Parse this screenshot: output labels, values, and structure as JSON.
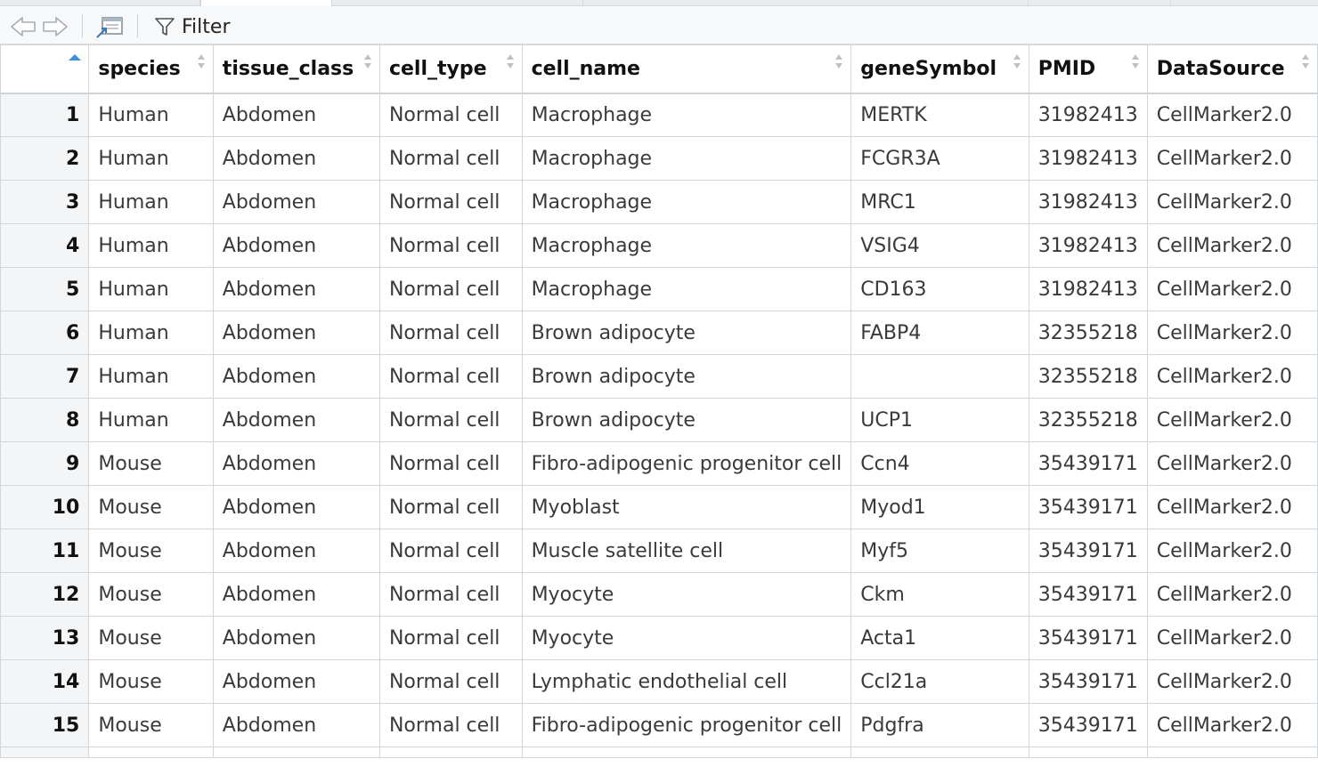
{
  "toolbar": {
    "filter_label": "Filter"
  },
  "table": {
    "columns": [
      "species",
      "tissue_class",
      "cell_type",
      "cell_name",
      "geneSymbol",
      "PMID",
      "DataSource"
    ],
    "rows": [
      {
        "n": "1",
        "species": "Human",
        "tissue_class": "Abdomen",
        "cell_type": "Normal cell",
        "cell_name": "Macrophage",
        "geneSymbol": "MERTK",
        "PMID": "31982413",
        "DataSource": "CellMarker2.0"
      },
      {
        "n": "2",
        "species": "Human",
        "tissue_class": "Abdomen",
        "cell_type": "Normal cell",
        "cell_name": "Macrophage",
        "geneSymbol": "FCGR3A",
        "PMID": "31982413",
        "DataSource": "CellMarker2.0"
      },
      {
        "n": "3",
        "species": "Human",
        "tissue_class": "Abdomen",
        "cell_type": "Normal cell",
        "cell_name": "Macrophage",
        "geneSymbol": "MRC1",
        "PMID": "31982413",
        "DataSource": "CellMarker2.0"
      },
      {
        "n": "4",
        "species": "Human",
        "tissue_class": "Abdomen",
        "cell_type": "Normal cell",
        "cell_name": "Macrophage",
        "geneSymbol": "VSIG4",
        "PMID": "31982413",
        "DataSource": "CellMarker2.0"
      },
      {
        "n": "5",
        "species": "Human",
        "tissue_class": "Abdomen",
        "cell_type": "Normal cell",
        "cell_name": "Macrophage",
        "geneSymbol": "CD163",
        "PMID": "31982413",
        "DataSource": "CellMarker2.0"
      },
      {
        "n": "6",
        "species": "Human",
        "tissue_class": "Abdomen",
        "cell_type": "Normal cell",
        "cell_name": "Brown adipocyte",
        "geneSymbol": "FABP4",
        "PMID": "32355218",
        "DataSource": "CellMarker2.0"
      },
      {
        "n": "7",
        "species": "Human",
        "tissue_class": "Abdomen",
        "cell_type": "Normal cell",
        "cell_name": "Brown adipocyte",
        "geneSymbol": "",
        "PMID": "32355218",
        "DataSource": "CellMarker2.0"
      },
      {
        "n": "8",
        "species": "Human",
        "tissue_class": "Abdomen",
        "cell_type": "Normal cell",
        "cell_name": "Brown adipocyte",
        "geneSymbol": "UCP1",
        "PMID": "32355218",
        "DataSource": "CellMarker2.0"
      },
      {
        "n": "9",
        "species": "Mouse",
        "tissue_class": "Abdomen",
        "cell_type": "Normal cell",
        "cell_name": "Fibro-adipogenic progenitor cell",
        "geneSymbol": "Ccn4",
        "PMID": "35439171",
        "DataSource": "CellMarker2.0"
      },
      {
        "n": "10",
        "species": "Mouse",
        "tissue_class": "Abdomen",
        "cell_type": "Normal cell",
        "cell_name": "Myoblast",
        "geneSymbol": "Myod1",
        "PMID": "35439171",
        "DataSource": "CellMarker2.0"
      },
      {
        "n": "11",
        "species": "Mouse",
        "tissue_class": "Abdomen",
        "cell_type": "Normal cell",
        "cell_name": "Muscle satellite cell",
        "geneSymbol": "Myf5",
        "PMID": "35439171",
        "DataSource": "CellMarker2.0"
      },
      {
        "n": "12",
        "species": "Mouse",
        "tissue_class": "Abdomen",
        "cell_type": "Normal cell",
        "cell_name": "Myocyte",
        "geneSymbol": "Ckm",
        "PMID": "35439171",
        "DataSource": "CellMarker2.0"
      },
      {
        "n": "13",
        "species": "Mouse",
        "tissue_class": "Abdomen",
        "cell_type": "Normal cell",
        "cell_name": "Myocyte",
        "geneSymbol": "Acta1",
        "PMID": "35439171",
        "DataSource": "CellMarker2.0"
      },
      {
        "n": "14",
        "species": "Mouse",
        "tissue_class": "Abdomen",
        "cell_type": "Normal cell",
        "cell_name": "Lymphatic endothelial cell",
        "geneSymbol": "Ccl21a",
        "PMID": "35439171",
        "DataSource": "CellMarker2.0"
      },
      {
        "n": "15",
        "species": "Mouse",
        "tissue_class": "Abdomen",
        "cell_type": "Normal cell",
        "cell_name": "Fibro-adipogenic progenitor cell",
        "geneSymbol": "Pdgfra",
        "PMID": "35439171",
        "DataSource": "CellMarker2.0"
      }
    ]
  },
  "colors": {
    "sort_active": "#3b8fd9",
    "border": "#d3d6d9",
    "rownum_bg": "#f4f5f6"
  }
}
